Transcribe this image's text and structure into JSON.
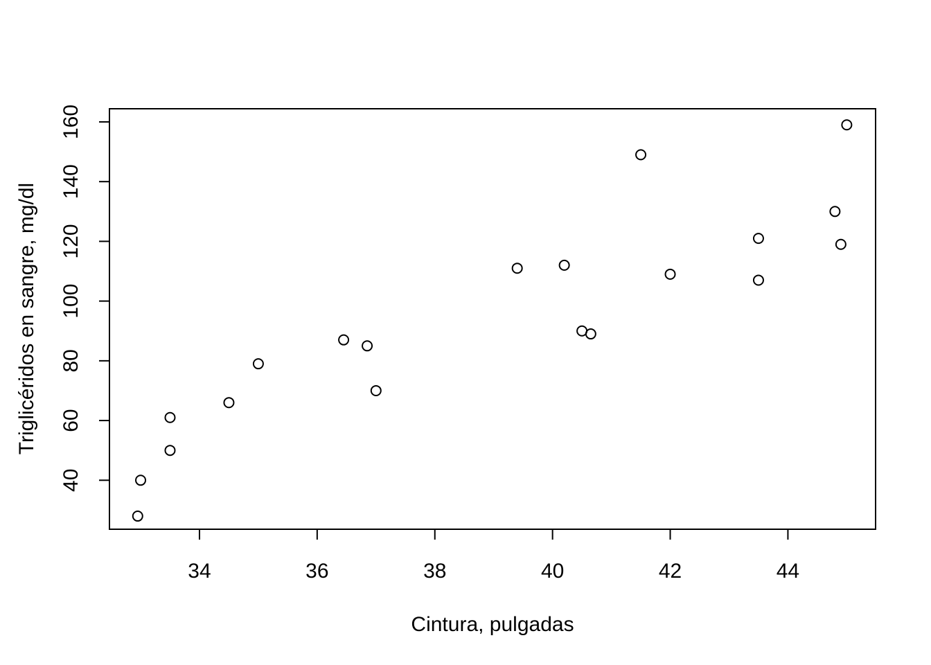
{
  "chart_data": {
    "type": "scatter",
    "title": "",
    "xlabel": "Cintura, pulgadas",
    "ylabel": "Triglicéridos en sangre, mg/dl",
    "xlim": [
      32.47,
      45.49
    ],
    "ylim": [
      23.6,
      164.4
    ],
    "x_ticks": [
      34,
      36,
      38,
      40,
      42,
      44
    ],
    "y_ticks": [
      40,
      60,
      80,
      100,
      120,
      140,
      160
    ],
    "x_tick_labels": [
      "34",
      "36",
      "38",
      "40",
      "42",
      "44"
    ],
    "y_tick_labels": [
      "40",
      "60",
      "80",
      "100",
      "120",
      "140",
      "160"
    ],
    "grid": false,
    "marker": "open-circle",
    "points": [
      {
        "x": 32.95,
        "y": 28
      },
      {
        "x": 33.0,
        "y": 40
      },
      {
        "x": 33.5,
        "y": 50
      },
      {
        "x": 33.5,
        "y": 61
      },
      {
        "x": 34.5,
        "y": 66
      },
      {
        "x": 35.0,
        "y": 79
      },
      {
        "x": 36.45,
        "y": 87
      },
      {
        "x": 36.85,
        "y": 85
      },
      {
        "x": 37.0,
        "y": 70
      },
      {
        "x": 39.4,
        "y": 111
      },
      {
        "x": 40.2,
        "y": 112
      },
      {
        "x": 40.5,
        "y": 90
      },
      {
        "x": 40.65,
        "y": 89
      },
      {
        "x": 41.5,
        "y": 149
      },
      {
        "x": 42.0,
        "y": 109
      },
      {
        "x": 43.5,
        "y": 121
      },
      {
        "x": 43.5,
        "y": 107
      },
      {
        "x": 44.8,
        "y": 130
      },
      {
        "x": 44.9,
        "y": 119
      },
      {
        "x": 45.0,
        "y": 159
      }
    ]
  }
}
